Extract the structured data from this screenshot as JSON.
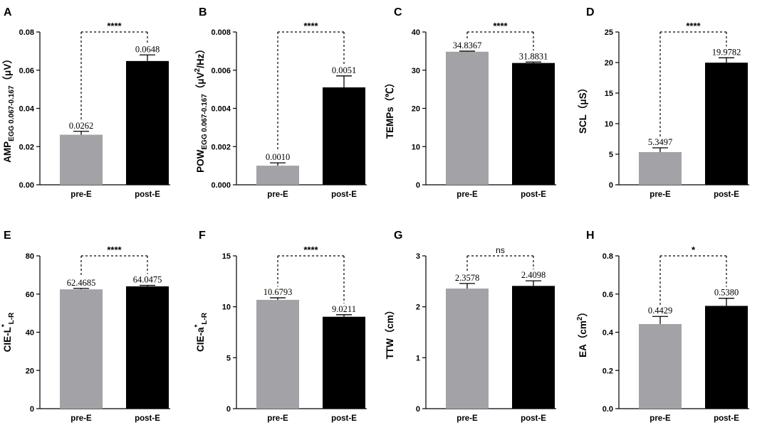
{
  "chart_data": [
    {
      "panel": "A",
      "type": "bar",
      "categories": [
        "pre-E",
        "post-E"
      ],
      "values": [
        0.0262,
        0.0648
      ],
      "errors": [
        0.0018,
        0.0032
      ],
      "data_labels": [
        "0.0262",
        "0.0648"
      ],
      "colors": [
        "#a3a3a7",
        "#000000"
      ],
      "ylabel": {
        "main": "AMP",
        "sub": "EGG 0.067-0.167",
        "unit": "（μV）"
      },
      "ylim": [
        0,
        0.08
      ],
      "yticks": [
        "0.00",
        "0.02",
        "0.04",
        "0.06",
        "0.08"
      ],
      "significance": "****"
    },
    {
      "panel": "B",
      "type": "bar",
      "categories": [
        "pre-E",
        "post-E"
      ],
      "values": [
        0.001,
        0.0051
      ],
      "errors": [
        0.00015,
        0.0006
      ],
      "data_labels": [
        "0.0010",
        "0.0051"
      ],
      "colors": [
        "#a3a3a7",
        "#000000"
      ],
      "ylabel": {
        "main": "POW",
        "sub": "EGG 0.067-0.167",
        "unit": "（μV",
        "sup": "2",
        "unit_tail": "/Hz）"
      },
      "ylim": [
        0,
        0.008
      ],
      "yticks": [
        "0.000",
        "0.002",
        "0.004",
        "0.006",
        "0.008"
      ],
      "significance": "****"
    },
    {
      "panel": "C",
      "type": "bar",
      "categories": [
        "pre-E",
        "post-E"
      ],
      "values": [
        34.8367,
        31.8831
      ],
      "errors": [
        0.15,
        0.25
      ],
      "data_labels": [
        "34.8367",
        "31.8831"
      ],
      "colors": [
        "#a3a3a7",
        "#000000"
      ],
      "ylabel": {
        "main": "TEMPs",
        "unit": "（℃）"
      },
      "ylim": [
        0,
        40
      ],
      "yticks": [
        "0",
        "10",
        "20",
        "30",
        "40"
      ],
      "significance": "****"
    },
    {
      "panel": "D",
      "type": "bar",
      "categories": [
        "pre-E",
        "post-E"
      ],
      "values": [
        5.3497,
        19.9782
      ],
      "errors": [
        0.7,
        0.8
      ],
      "data_labels": [
        "5.3497",
        "19.9782"
      ],
      "colors": [
        "#a3a3a7",
        "#000000"
      ],
      "ylabel": {
        "main": "SCL",
        "unit": "（μS）"
      },
      "ylim": [
        0,
        25
      ],
      "yticks": [
        "0",
        "5",
        "10",
        "15",
        "20",
        "25"
      ],
      "significance": "****"
    },
    {
      "panel": "E",
      "type": "bar",
      "categories": [
        "pre-E",
        "post-E"
      ],
      "values": [
        62.4685,
        64.0475
      ],
      "errors": [
        0.5,
        0.5
      ],
      "data_labels": [
        "62.4685",
        "64.0475"
      ],
      "colors": [
        "#a3a3a7",
        "#000000"
      ],
      "ylabel": {
        "main": "CIE-L",
        "sup": "*",
        "sub": "L-R"
      },
      "ylim": [
        0,
        80
      ],
      "yticks": [
        "0",
        "20",
        "40",
        "60",
        "80"
      ],
      "significance": "****"
    },
    {
      "panel": "F",
      "type": "bar",
      "categories": [
        "pre-E",
        "post-E"
      ],
      "values": [
        10.6793,
        9.0211
      ],
      "errors": [
        0.2,
        0.2
      ],
      "data_labels": [
        "10.6793",
        "9.0211"
      ],
      "colors": [
        "#a3a3a7",
        "#000000"
      ],
      "ylabel": {
        "main": "CIE-a",
        "sup": "*",
        "sub": "L-R"
      },
      "ylim": [
        0,
        15
      ],
      "yticks": [
        "0",
        "5",
        "10",
        "15"
      ],
      "significance": "****"
    },
    {
      "panel": "G",
      "type": "bar",
      "categories": [
        "pre-E",
        "post-E"
      ],
      "values": [
        2.3578,
        2.4098
      ],
      "errors": [
        0.1,
        0.1
      ],
      "data_labels": [
        "2.3578",
        "2.4098"
      ],
      "colors": [
        "#a3a3a7",
        "#000000"
      ],
      "ylabel": {
        "main": "TTW",
        "unit": "（cm）"
      },
      "ylim": [
        0,
        3
      ],
      "yticks": [
        "0",
        "1",
        "2",
        "3"
      ],
      "significance": "ns"
    },
    {
      "panel": "H",
      "type": "bar",
      "categories": [
        "pre-E",
        "post-E"
      ],
      "values": [
        0.4429,
        0.538
      ],
      "errors": [
        0.04,
        0.04
      ],
      "data_labels": [
        "0.4429",
        "0.5380"
      ],
      "colors": [
        "#a3a3a7",
        "#000000"
      ],
      "ylabel": {
        "main": "EA",
        "unit": "（cm",
        "sup": "2",
        "unit_tail": "）"
      },
      "ylim": [
        0,
        0.8
      ],
      "yticks": [
        "0.0",
        "0.2",
        "0.4",
        "0.6",
        "0.8"
      ],
      "significance": "*"
    }
  ]
}
